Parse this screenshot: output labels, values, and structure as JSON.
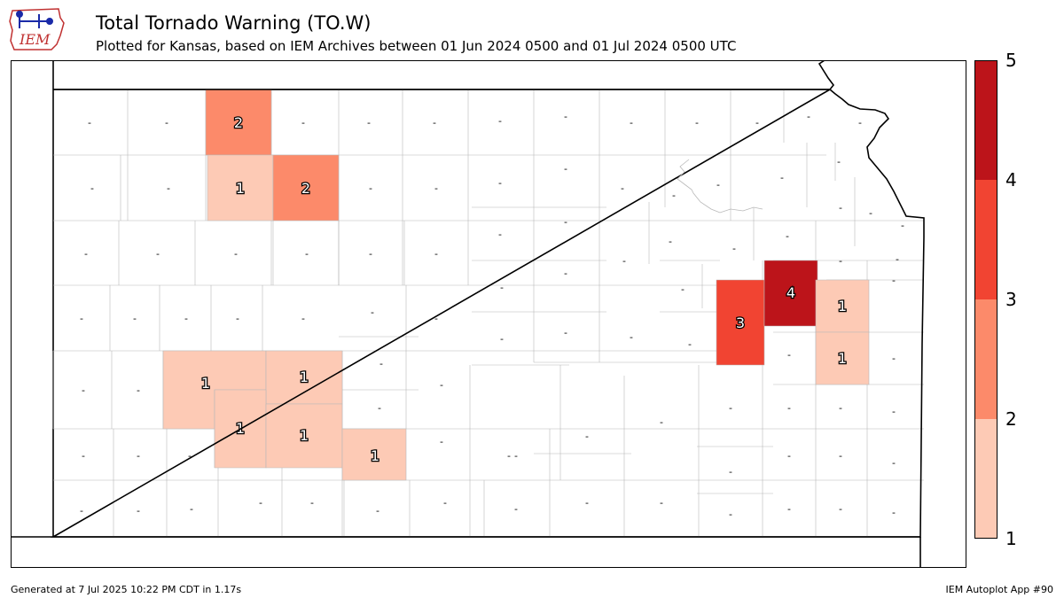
{
  "logo": {
    "text": "IEM",
    "icon": "iowa-state-outline-with-weather-station-icon"
  },
  "title": "Total Tornado Warning (TO.W)",
  "subtitle": "Plotted for Kansas, based on IEM Archives  between 01 Jun 2024 0500 and 01 Jul 2024 0500 UTC",
  "footer": {
    "generated": "Generated at 7 Jul 2025 10:22 PM CDT in 1.17s",
    "app": "IEM Autoplot App #90"
  },
  "legend": {
    "ticks": [
      "1",
      "2",
      "3",
      "4",
      "5"
    ],
    "bins": [
      {
        "from": 1,
        "to": 2,
        "color": "#fdcab5"
      },
      {
        "from": 2,
        "to": 3,
        "color": "#fc8a6a"
      },
      {
        "from": 3,
        "to": 4,
        "color": "#f14432"
      },
      {
        "from": 4,
        "to": 5,
        "color": "#bc141a"
      }
    ]
  },
  "map_data": {
    "type": "choropleth",
    "region": "Kansas counties",
    "highlighted_counties": [
      {
        "label": "2",
        "value": 2,
        "color": "#fc8a6a"
      },
      {
        "label": "1",
        "value": 1,
        "color": "#fdcab5"
      },
      {
        "label": "2",
        "value": 2,
        "color": "#fc8a6a"
      },
      {
        "label": "1",
        "value": 1,
        "color": "#fdcab5"
      },
      {
        "label": "1",
        "value": 1,
        "color": "#fdcab5"
      },
      {
        "label": "1",
        "value": 1,
        "color": "#fdcab5"
      },
      {
        "label": "1",
        "value": 1,
        "color": "#fdcab5"
      },
      {
        "label": "1",
        "value": 1,
        "color": "#fdcab5"
      },
      {
        "label": "3",
        "value": 3,
        "color": "#f14432"
      },
      {
        "label": "4",
        "value": 4,
        "color": "#bc141a"
      },
      {
        "label": "1",
        "value": 1,
        "color": "#fdcab5"
      },
      {
        "label": "1",
        "value": 1,
        "color": "#fdcab5"
      }
    ],
    "no_data_symbol": "-"
  }
}
